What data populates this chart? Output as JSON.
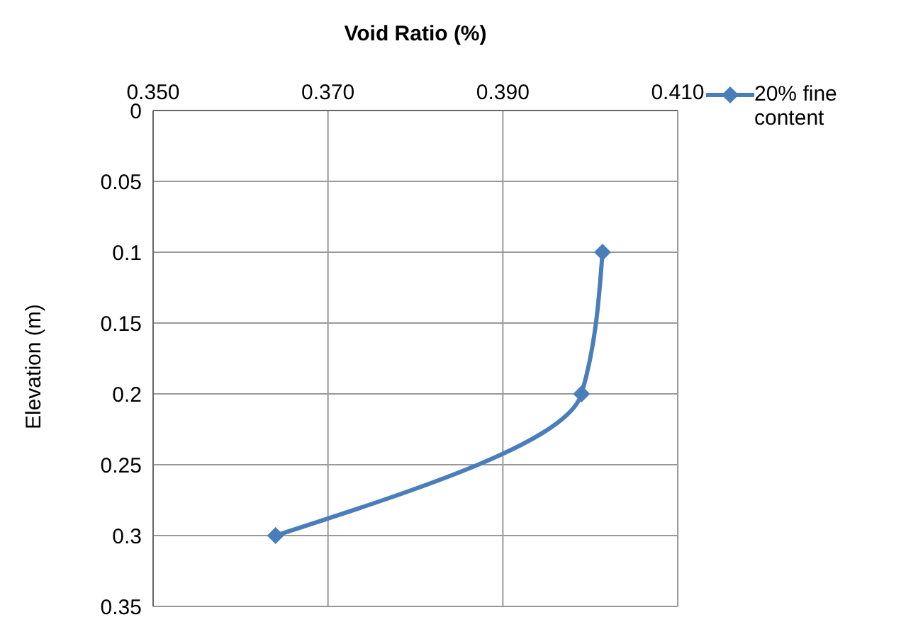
{
  "chart_data": {
    "type": "line",
    "xlabel": "Void Ratio (%)",
    "ylabel": "Elevation (m)",
    "x": [
      0.4014,
      0.399,
      0.364
    ],
    "series": [
      {
        "name": "20% fine content",
        "color": "#4a7ebb",
        "values": [
          0.1,
          0.2,
          0.3
        ]
      }
    ],
    "xlim": [
      0.35,
      0.41
    ],
    "xticks": [
      {
        "value": 0.35,
        "label": "0.350"
      },
      {
        "value": 0.37,
        "label": "0.370"
      },
      {
        "value": 0.39,
        "label": "0.390"
      },
      {
        "value": 0.41,
        "label": "0.410"
      }
    ],
    "ylim": [
      0.35,
      0
    ],
    "yticks": [
      0,
      0.05,
      0.1,
      0.15,
      0.2,
      0.25,
      0.3,
      0.35
    ],
    "grid": true,
    "legend": "top right",
    "marker": "diamond",
    "line_style": "solid"
  }
}
